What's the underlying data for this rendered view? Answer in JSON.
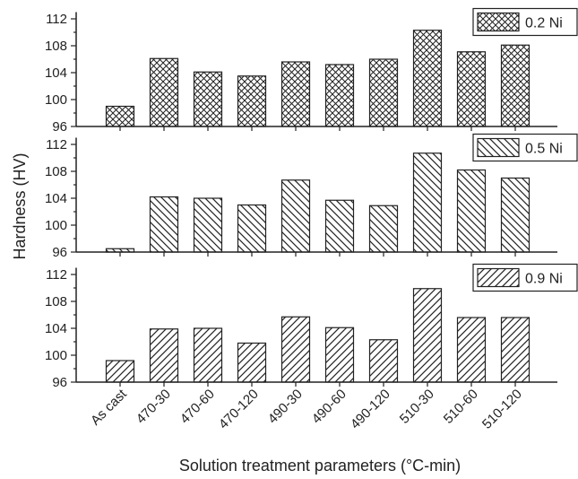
{
  "chart_data": {
    "type": "bar",
    "xlabel": "Solution treatment parameters (°C-min)",
    "ylabel": "Hardness (HV)",
    "categories": [
      "As cast",
      "470-30",
      "470-60",
      "470-120",
      "490-30",
      "490-60",
      "490-120",
      "510-30",
      "510-60",
      "510-120"
    ],
    "ylim": [
      96,
      113
    ],
    "yticks": [
      "96",
      "100",
      "104",
      "108",
      "112"
    ],
    "grid": false,
    "legend_position": "top-right",
    "panels": [
      {
        "name": "0.2 Ni",
        "pattern": "crosshatch",
        "values": [
          99.0,
          106.1,
          104.1,
          103.5,
          105.6,
          105.2,
          106.0,
          110.3,
          107.1,
          108.1
        ]
      },
      {
        "name": "0.5 Ni",
        "pattern": "back-diagonal",
        "values": [
          96.5,
          104.2,
          104.0,
          103.0,
          106.7,
          103.7,
          102.9,
          110.7,
          108.2,
          107.0
        ]
      },
      {
        "name": "0.9 Ni",
        "pattern": "forward-diagonal",
        "values": [
          99.2,
          103.9,
          104.0,
          101.8,
          105.7,
          104.1,
          102.3,
          109.9,
          105.6,
          105.6
        ]
      }
    ],
    "colors": {
      "axis": "#222222",
      "bar_stroke": "#222222",
      "bar_fill": "#ffffff"
    }
  }
}
